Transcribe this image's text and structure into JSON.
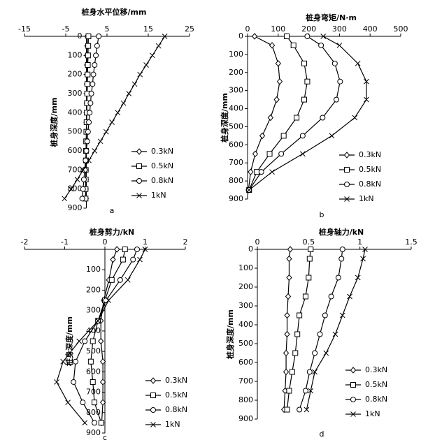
{
  "chart_data": [
    {
      "type": "line",
      "title": "桩身水平位移/mm",
      "ylabel": "桩身深度/mm",
      "label": "a",
      "xlim": [
        -15,
        25
      ],
      "xticks": [
        -15,
        -5,
        5,
        15,
        25
      ],
      "ylim": [
        0,
        900
      ],
      "yticks": [
        0,
        100,
        200,
        300,
        400,
        500,
        600,
        700,
        800,
        900
      ],
      "y_inverted": true,
      "legend": "lower right",
      "y": [
        0,
        50,
        100,
        150,
        200,
        250,
        300,
        350,
        400,
        450,
        500,
        550,
        600,
        650,
        700,
        750,
        800,
        850
      ],
      "series": [
        {
          "name": "0.3kN",
          "color": "#000000",
          "marker": "diamond",
          "values": [
            0.2,
            0.2,
            0.15,
            0.15,
            0.1,
            0.1,
            0.1,
            0.05,
            0.05,
            0,
            0,
            0,
            -0.05,
            -0.05,
            -0.1,
            -0.1,
            -0.1,
            -0.1
          ]
        },
        {
          "name": "0.5kN",
          "color": "#000000",
          "marker": "square",
          "values": [
            0.5,
            0.45,
            0.4,
            0.35,
            0.3,
            0.25,
            0.2,
            0.15,
            0.1,
            0.05,
            0,
            -0.05,
            -0.1,
            -0.1,
            -0.15,
            -0.15,
            -0.2,
            -0.2
          ]
        },
        {
          "name": "0.8kN",
          "color": "#000000",
          "marker": "circle",
          "values": [
            3,
            2.6,
            2.3,
            2,
            1.7,
            1.5,
            1.2,
            1,
            0.8,
            0.6,
            0.4,
            0.2,
            0,
            -0.2,
            -0.4,
            -0.6,
            -0.8,
            -1
          ]
        },
        {
          "name": "1kN",
          "color": "#000000",
          "marker": "cross",
          "values": [
            19,
            17.5,
            16,
            14.5,
            13,
            11.7,
            10.3,
            9,
            7.6,
            6.2,
            4.8,
            3.4,
            2,
            0.6,
            -0.8,
            -2.2,
            -3.7,
            -5.3
          ]
        }
      ]
    },
    {
      "type": "line",
      "title": "桩身弯矩/N·m",
      "ylabel": "桩身深度/mm",
      "label": "b",
      "xlim": [
        0,
        500
      ],
      "xticks": [
        0,
        100,
        200,
        300,
        400,
        500
      ],
      "ylim": [
        0,
        900
      ],
      "yticks": [
        0,
        100,
        200,
        300,
        400,
        500,
        600,
        700,
        800,
        900
      ],
      "y_inverted": true,
      "legend": "lower right",
      "y": [
        0,
        50,
        150,
        250,
        350,
        450,
        550,
        650,
        750,
        850
      ],
      "series": [
        {
          "name": "0.3kN",
          "color": "#000000",
          "marker": "diamond",
          "values": [
            23,
            80,
            100,
            105,
            95,
            75,
            48,
            25,
            10,
            3
          ]
        },
        {
          "name": "0.5kN",
          "color": "#000000",
          "marker": "square",
          "values": [
            128,
            150,
            185,
            195,
            185,
            160,
            118,
            72,
            30,
            5
          ]
        },
        {
          "name": "0.8kN",
          "color": "#000000",
          "marker": "circle",
          "values": [
            195,
            240,
            285,
            302,
            290,
            245,
            180,
            110,
            45,
            5
          ]
        },
        {
          "name": "1kN",
          "color": "#000000",
          "marker": "cross",
          "values": [
            247,
            300,
            360,
            388,
            388,
            350,
            275,
            180,
            80,
            5
          ]
        }
      ]
    },
    {
      "type": "line",
      "title": "桩身剪力/kN",
      "ylabel": "桩身深度/mm",
      "label": "c",
      "xlim": [
        -2,
        2
      ],
      "xticks": [
        -2,
        -1,
        0,
        1,
        2
      ],
      "ylim": [
        0,
        900
      ],
      "yticks": [
        100,
        200,
        300,
        400,
        500,
        600,
        700,
        800,
        900
      ],
      "y_inverted": true,
      "legend": "lower right",
      "y": [
        0,
        50,
        150,
        250,
        350,
        450,
        550,
        650,
        750,
        850
      ],
      "series": [
        {
          "name": "0.3kN",
          "color": "#000000",
          "marker": "diamond",
          "values": [
            0.3,
            0.2,
            0.1,
            -0.03,
            -0.1,
            -0.1,
            -0.05,
            -0.05,
            -0.05,
            -0.08
          ]
        },
        {
          "name": "0.5kN",
          "color": "#000000",
          "marker": "square",
          "values": [
            0.5,
            0.45,
            0.17,
            0,
            -0.17,
            -0.3,
            -0.35,
            -0.3,
            -0.26,
            -0.09
          ]
        },
        {
          "name": "0.8kN",
          "color": "#000000",
          "marker": "circle",
          "values": [
            0.8,
            0.7,
            0.38,
            0.03,
            -0.17,
            -0.5,
            -0.73,
            -0.78,
            -0.55,
            -0.26
          ]
        },
        {
          "name": "1kN",
          "color": "#000000",
          "marker": "cross",
          "values": [
            1,
            0.87,
            0.57,
            0.09,
            -0.17,
            -0.64,
            -1.04,
            -1.2,
            -0.92,
            -0.5
          ]
        }
      ]
    },
    {
      "type": "line",
      "title": "桩身轴力/kN",
      "ylabel": "桩身深度/mm",
      "label": "d",
      "xlim": [
        0,
        1.5
      ],
      "xticks": [
        0,
        0.5,
        1,
        1.5
      ],
      "ylim": [
        0,
        900
      ],
      "yticks": [
        0,
        100,
        200,
        300,
        400,
        500,
        600,
        700,
        800,
        900
      ],
      "y_inverted": true,
      "legend": "lower right",
      "y": [
        0,
        50,
        150,
        250,
        350,
        450,
        550,
        650,
        750,
        850
      ],
      "series": [
        {
          "name": "0.3kN",
          "color": "#000000",
          "marker": "diamond",
          "values": [
            0.32,
            0.31,
            0.31,
            0.3,
            0.29,
            0.29,
            0.28,
            0.28,
            0.27,
            0.26
          ]
        },
        {
          "name": "0.5kN",
          "color": "#000000",
          "marker": "square",
          "values": [
            0.52,
            0.51,
            0.5,
            0.47,
            0.41,
            0.39,
            0.37,
            0.34,
            0.31,
            0.29
          ]
        },
        {
          "name": "0.8kN",
          "color": "#000000",
          "marker": "circle",
          "values": [
            0.83,
            0.82,
            0.79,
            0.72,
            0.66,
            0.61,
            0.56,
            0.51,
            0.47,
            0.41
          ]
        },
        {
          "name": "1kN",
          "color": "#000000",
          "marker": "cross",
          "values": [
            1.05,
            1.03,
            0.98,
            0.9,
            0.83,
            0.76,
            0.67,
            0.56,
            0.52,
            0.48
          ]
        }
      ]
    }
  ]
}
